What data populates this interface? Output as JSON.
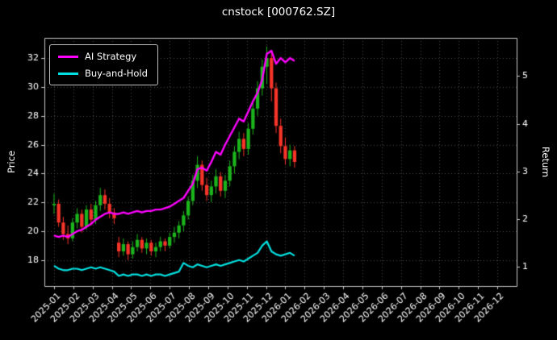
{
  "chart": {
    "title": "cnstock [000762.SZ]",
    "ylabel_left": "Price",
    "ylabel_right": "Return",
    "legend": [
      {
        "label": "AI Strategy",
        "color": "#ff00ff"
      },
      {
        "label": "Buy-and-Hold",
        "color": "#00e0e0"
      }
    ]
  },
  "chart_data": {
    "type": "candlestick+line",
    "title": "cnstock [000762.SZ]",
    "xlabel": "",
    "ylabel_left": "Price",
    "ylabel_right": "Return",
    "grid": true,
    "grid_color": "#4d4d4d",
    "frame_color": "#c8c8c8",
    "tick_color": "#ffffff",
    "background": "#000000",
    "up_color": "#1cb41c",
    "down_color": "#f63428",
    "x_ticks": [
      "2025-01",
      "2025-02",
      "2025-03",
      "2025-04",
      "2025-05",
      "2025-06",
      "2025-07",
      "2025-08",
      "2025-09",
      "2025-10",
      "2025-11",
      "2025-12",
      "2026-01",
      "2026-02",
      "2026-03",
      "2026-04",
      "2026-05",
      "2026-06",
      "2026-07",
      "2026-08",
      "2026-09",
      "2026-10",
      "2026-11",
      "2026-12"
    ],
    "xlim": [
      -0.5,
      24.0
    ],
    "ylim_left": [
      16.2,
      33.4
    ],
    "ylim_right": [
      0.6,
      5.8
    ],
    "yticks_left": [
      18,
      20,
      22,
      24,
      26,
      28,
      30,
      32
    ],
    "yticks_right": [
      1,
      2,
      3,
      4,
      5
    ],
    "x_step_months": 0.24,
    "candles_ohlc": [
      [
        21.8,
        22.6,
        21.2,
        21.9
      ],
      [
        21.9,
        22.2,
        20.3,
        20.6
      ],
      [
        20.6,
        21.0,
        19.4,
        19.8
      ],
      [
        19.8,
        20.4,
        19.1,
        19.5
      ],
      [
        19.5,
        20.9,
        19.3,
        20.6
      ],
      [
        20.6,
        21.6,
        20.2,
        21.2
      ],
      [
        21.2,
        21.5,
        19.9,
        20.3
      ],
      [
        20.3,
        21.8,
        20.1,
        21.5
      ],
      [
        21.5,
        21.9,
        20.4,
        20.8
      ],
      [
        20.8,
        22.1,
        20.5,
        21.8
      ],
      [
        21.8,
        23.0,
        21.4,
        22.5
      ],
      [
        22.5,
        22.9,
        21.5,
        21.9
      ],
      [
        21.9,
        22.3,
        20.9,
        21.3
      ],
      [
        21.3,
        21.6,
        20.5,
        20.9
      ],
      [
        19.2,
        19.6,
        18.2,
        18.6
      ],
      [
        18.6,
        19.5,
        18.3,
        19.1
      ],
      [
        19.1,
        19.3,
        18.0,
        18.4
      ],
      [
        18.4,
        19.3,
        18.1,
        18.9
      ],
      [
        18.9,
        19.8,
        18.6,
        19.4
      ],
      [
        19.4,
        19.6,
        18.5,
        18.8
      ],
      [
        18.8,
        19.5,
        18.4,
        19.2
      ],
      [
        19.2,
        19.4,
        18.3,
        18.6
      ],
      [
        18.6,
        19.2,
        18.2,
        18.9
      ],
      [
        18.9,
        19.6,
        18.6,
        19.3
      ],
      [
        19.3,
        19.5,
        18.6,
        19.0
      ],
      [
        19.0,
        19.9,
        18.8,
        19.6
      ],
      [
        19.6,
        20.3,
        19.2,
        19.9
      ],
      [
        19.9,
        20.7,
        19.5,
        20.4
      ],
      [
        20.4,
        21.4,
        20.0,
        21.1
      ],
      [
        21.1,
        22.4,
        20.8,
        22.1
      ],
      [
        22.1,
        23.9,
        21.8,
        23.5
      ],
      [
        23.5,
        25.2,
        23.0,
        24.6
      ],
      [
        24.6,
        24.9,
        22.8,
        23.2
      ],
      [
        23.2,
        23.7,
        22.1,
        22.5
      ],
      [
        22.5,
        23.5,
        22.0,
        23.1
      ],
      [
        23.1,
        24.3,
        22.6,
        23.8
      ],
      [
        23.8,
        24.1,
        22.4,
        22.8
      ],
      [
        22.8,
        23.9,
        22.3,
        23.5
      ],
      [
        23.5,
        24.9,
        23.1,
        24.5
      ],
      [
        24.5,
        25.9,
        24.0,
        25.5
      ],
      [
        25.5,
        26.9,
        25.0,
        26.4
      ],
      [
        26.4,
        26.8,
        25.2,
        25.7
      ],
      [
        25.7,
        27.5,
        25.3,
        27.1
      ],
      [
        27.1,
        28.9,
        26.7,
        28.5
      ],
      [
        28.5,
        30.4,
        28.0,
        29.9
      ],
      [
        29.9,
        31.9,
        29.4,
        31.4
      ],
      [
        31.4,
        32.8,
        30.2,
        32.0
      ],
      [
        32.0,
        32.4,
        29.0,
        29.9
      ],
      [
        29.9,
        30.3,
        26.8,
        27.3
      ],
      [
        27.3,
        27.8,
        25.4,
        25.9
      ],
      [
        25.9,
        26.5,
        24.6,
        25.0
      ],
      [
        25.0,
        26.0,
        24.5,
        25.6
      ],
      [
        25.6,
        25.9,
        24.4,
        24.8
      ]
    ],
    "series": [
      {
        "name": "AI Strategy",
        "color": "#ff00ff",
        "width": 2.4,
        "values": [
          19.7,
          19.6,
          19.7,
          19.6,
          19.8,
          20.0,
          20.1,
          20.3,
          20.5,
          20.8,
          21.0,
          21.2,
          21.3,
          21.2,
          21.2,
          21.3,
          21.2,
          21.3,
          21.4,
          21.3,
          21.4,
          21.4,
          21.5,
          21.5,
          21.6,
          21.7,
          21.9,
          22.1,
          22.3,
          22.8,
          23.3,
          24.3,
          24.4,
          24.2,
          24.8,
          25.5,
          25.3,
          26.0,
          26.6,
          27.2,
          27.8,
          27.6,
          28.3,
          29.0,
          29.6,
          30.5,
          32.3,
          32.5,
          31.6,
          32.0,
          31.7,
          32.0,
          31.8
        ]
      },
      {
        "name": "Buy-and-Hold",
        "color": "#00e0e0",
        "width": 2.2,
        "values": [
          17.6,
          17.4,
          17.3,
          17.3,
          17.4,
          17.4,
          17.3,
          17.4,
          17.5,
          17.4,
          17.5,
          17.4,
          17.3,
          17.2,
          16.9,
          17.0,
          16.9,
          17.0,
          17.0,
          16.9,
          17.0,
          16.9,
          17.0,
          17.0,
          16.9,
          17.0,
          17.1,
          17.2,
          17.8,
          17.6,
          17.5,
          17.7,
          17.6,
          17.5,
          17.6,
          17.7,
          17.6,
          17.7,
          17.8,
          17.9,
          18.0,
          17.9,
          18.1,
          18.3,
          18.5,
          19.0,
          19.3,
          18.6,
          18.4,
          18.3,
          18.4,
          18.5,
          18.3
        ]
      }
    ],
    "legend_position": "upper left"
  }
}
